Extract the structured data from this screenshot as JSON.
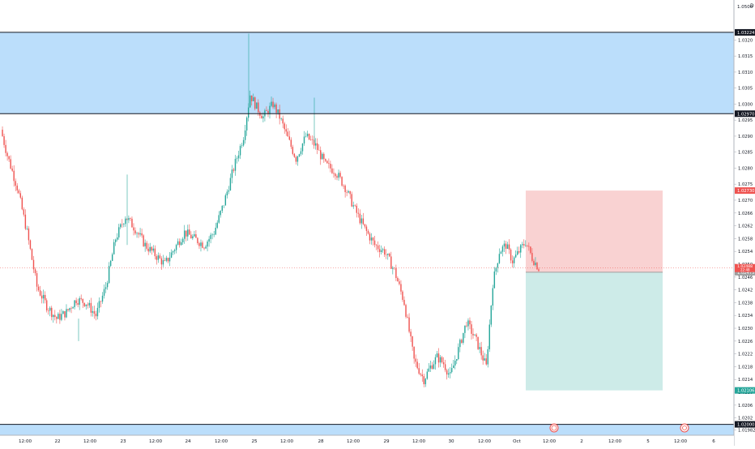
{
  "chart_data": {
    "type": "candlestick",
    "price_scale": {
      "tick_labels": [
        "1.0320",
        "1.0315",
        "1.0310",
        "1.0305",
        "1.0300",
        "1.0295",
        "1.0290",
        "1.0285",
        "1.0280",
        "1.0275",
        "1.0270",
        "1.0266",
        "1.0262",
        "1.0258",
        "1.0254",
        "1.0250",
        "1.0246",
        "1.0242",
        "1.0238",
        "1.0234",
        "1.0230",
        "1.0226",
        "1.0222",
        "1.0218",
        "1.0214",
        "1.0210",
        "1.0206",
        "1.0202",
        "1.01982"
      ],
      "top_label": "1.0500",
      "ylim": [
        1.01966,
        1.0332
      ]
    },
    "time_scale": {
      "tick_labels": [
        "12:00",
        "22",
        "12:00",
        "23",
        "12:00",
        "24",
        "12:00",
        "25",
        "12:00",
        "28",
        "12:00",
        "29",
        "12:00",
        "30",
        "12:00",
        "Oct",
        "12:00",
        "2",
        "12:00",
        "5",
        "12:00",
        "6"
      ]
    },
    "horizontal_lines": [
      {
        "price": 1.03224,
        "label": "1.03224"
      },
      {
        "price": 1.0297,
        "label": "1.02970"
      },
      {
        "price": 1.02,
        "label": "1.02000"
      }
    ],
    "zones": [
      {
        "name": "supply",
        "from": 1.0297,
        "to": 1.03224,
        "color": "#bbdefb"
      },
      {
        "name": "demand",
        "from": 1.01966,
        "to": 1.02,
        "color": "#bbdefb"
      }
    ],
    "position": {
      "stop_loss": 1.0273,
      "entry": 1.02475,
      "take_profit": 1.02106,
      "stop_label": "1.02730",
      "entry_label": "1.02475",
      "target_label": "1.02106"
    },
    "current_price": {
      "value": 1.02488,
      "label": "1.02488",
      "countdown": "22:48"
    },
    "colors": {
      "up": "#26a69a",
      "down": "#ef5350",
      "stop_zone": "#f9d2d2",
      "target_zone": "#cdebe8",
      "label_red": "#ef5350",
      "label_teal": "#26a69a",
      "label_dark": "#131722"
    }
  },
  "axis_marker": "D"
}
